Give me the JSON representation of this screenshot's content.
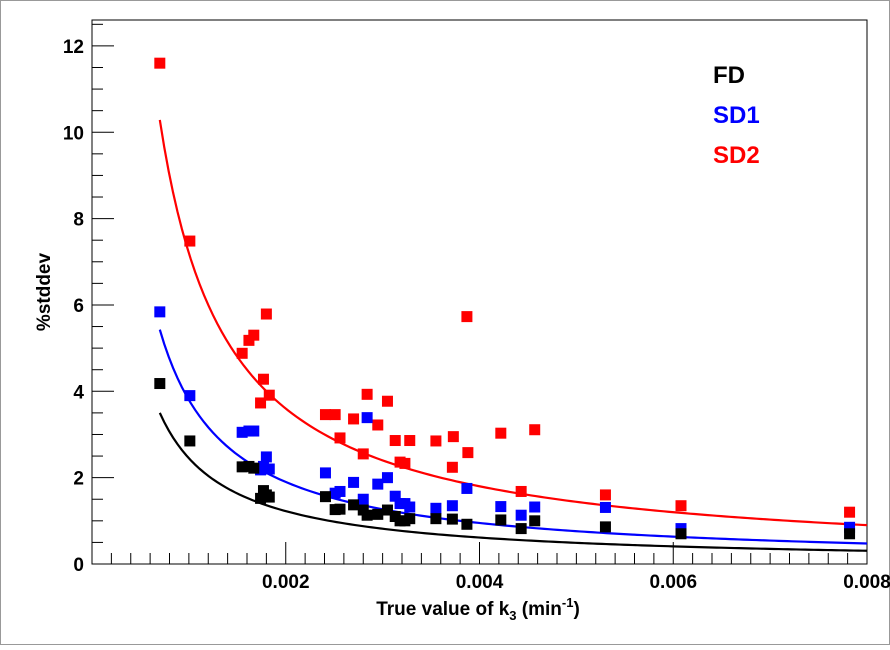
{
  "chart_data": {
    "type": "scatter",
    "title": "",
    "xlabel": "True value of k",
    "xlabel_sub": "3",
    "xlabel_unit_open": " (min",
    "xlabel_unit_sup": "-1",
    "xlabel_unit_close": ")",
    "ylabel": "%stddev",
    "xlim": [
      0.0,
      0.008
    ],
    "ylim": [
      0,
      12.6
    ],
    "x_ticks": [
      {
        "value": 0.002,
        "label": "0.002"
      },
      {
        "value": 0.004,
        "label": "0.004"
      },
      {
        "value": 0.006,
        "label": "0.006"
      },
      {
        "value": 0.008,
        "label": "0.008"
      }
    ],
    "y_ticks": [
      {
        "value": 0,
        "label": "0"
      },
      {
        "value": 2,
        "label": "2"
      },
      {
        "value": 4,
        "label": "4"
      },
      {
        "value": 6,
        "label": "6"
      },
      {
        "value": 8,
        "label": "8"
      },
      {
        "value": 10,
        "label": "10"
      },
      {
        "value": 12,
        "label": "12"
      }
    ],
    "grid": false,
    "legend_placement": "top-right",
    "series": [
      {
        "name": "FD",
        "color": "#000000",
        "fit_coeff": 0.00245,
        "points": [
          [
            0.0007,
            4.18
          ],
          [
            0.00101,
            2.85
          ],
          [
            0.00155,
            2.25
          ],
          [
            0.00162,
            2.26
          ],
          [
            0.00167,
            2.22
          ],
          [
            0.00174,
            1.52
          ],
          [
            0.00177,
            1.7
          ],
          [
            0.0018,
            1.6
          ],
          [
            0.00183,
            1.55
          ],
          [
            0.00241,
            1.56
          ],
          [
            0.00251,
            1.26
          ],
          [
            0.00256,
            1.27
          ],
          [
            0.0027,
            1.37
          ],
          [
            0.0028,
            1.25
          ],
          [
            0.00284,
            1.13
          ],
          [
            0.00295,
            1.15
          ],
          [
            0.00305,
            1.25
          ],
          [
            0.00313,
            1.1
          ],
          [
            0.00318,
            1.0
          ],
          [
            0.00323,
            1.0
          ],
          [
            0.00328,
            1.05
          ],
          [
            0.00355,
            1.05
          ],
          [
            0.00372,
            1.04
          ],
          [
            0.00387,
            0.92
          ],
          [
            0.00422,
            1.02
          ],
          [
            0.00443,
            0.82
          ],
          [
            0.00457,
            1.0
          ],
          [
            0.0053,
            0.86
          ],
          [
            0.00608,
            0.7
          ],
          [
            0.00782,
            0.7
          ]
        ]
      },
      {
        "name": "SD1",
        "color": "#0000ff",
        "fit_coeff": 0.0038,
        "points": [
          [
            0.0007,
            5.84
          ],
          [
            0.00101,
            3.9
          ],
          [
            0.00155,
            3.05
          ],
          [
            0.00162,
            3.08
          ],
          [
            0.00167,
            3.08
          ],
          [
            0.00174,
            2.18
          ],
          [
            0.00177,
            2.26
          ],
          [
            0.0018,
            2.48
          ],
          [
            0.00183,
            2.2
          ],
          [
            0.00241,
            2.11
          ],
          [
            0.00251,
            1.64
          ],
          [
            0.00256,
            1.68
          ],
          [
            0.0027,
            1.89
          ],
          [
            0.0028,
            1.5
          ],
          [
            0.00284,
            3.39
          ],
          [
            0.00295,
            1.85
          ],
          [
            0.00305,
            2.0
          ],
          [
            0.00313,
            1.57
          ],
          [
            0.00318,
            1.4
          ],
          [
            0.00323,
            1.4
          ],
          [
            0.00328,
            1.32
          ],
          [
            0.00355,
            1.29
          ],
          [
            0.00372,
            1.35
          ],
          [
            0.00387,
            1.75
          ],
          [
            0.00422,
            1.33
          ],
          [
            0.00443,
            1.13
          ],
          [
            0.00457,
            1.32
          ],
          [
            0.0053,
            1.31
          ],
          [
            0.00608,
            0.82
          ],
          [
            0.00782,
            0.85
          ]
        ]
      },
      {
        "name": "SD2",
        "color": "#ff0000",
        "fit_coeff": 0.0072,
        "points": [
          [
            0.0007,
            11.6
          ],
          [
            0.00101,
            7.48
          ],
          [
            0.00155,
            4.88
          ],
          [
            0.00162,
            5.18
          ],
          [
            0.00167,
            5.3
          ],
          [
            0.00174,
            3.73
          ],
          [
            0.00177,
            4.28
          ],
          [
            0.0018,
            5.79
          ],
          [
            0.00183,
            3.91
          ],
          [
            0.00241,
            3.46
          ],
          [
            0.00251,
            3.46
          ],
          [
            0.00256,
            2.92
          ],
          [
            0.0027,
            3.36
          ],
          [
            0.0028,
            2.55
          ],
          [
            0.00284,
            3.93
          ],
          [
            0.00295,
            3.22
          ],
          [
            0.00305,
            3.77
          ],
          [
            0.00313,
            2.86
          ],
          [
            0.00318,
            2.36
          ],
          [
            0.00323,
            2.33
          ],
          [
            0.00328,
            2.86
          ],
          [
            0.00355,
            2.85
          ],
          [
            0.00372,
            2.24
          ],
          [
            0.00373,
            2.95
          ],
          [
            0.00387,
            5.73
          ],
          [
            0.00388,
            2.58
          ],
          [
            0.00422,
            3.03
          ],
          [
            0.00443,
            1.68
          ],
          [
            0.00457,
            3.11
          ],
          [
            0.0053,
            1.6
          ],
          [
            0.00608,
            1.35
          ],
          [
            0.00782,
            1.2
          ]
        ]
      }
    ]
  }
}
